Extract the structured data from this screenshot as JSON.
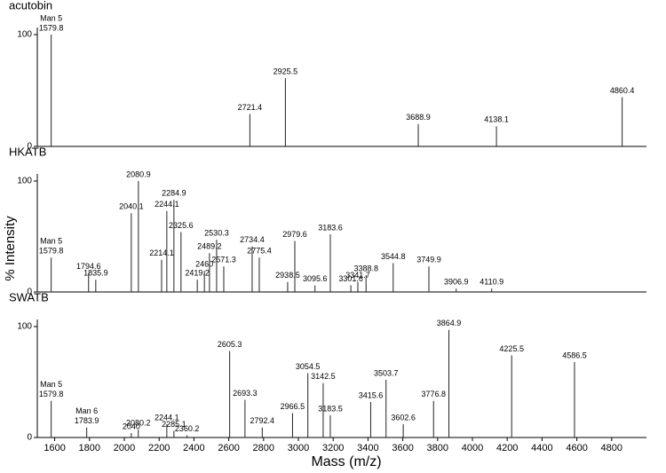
{
  "chart_data": [
    {
      "type": "spectrum",
      "title": "acutobin",
      "ylim": [
        0,
        100
      ],
      "yticks": [
        0,
        100
      ],
      "x": [
        1579.8,
        2721.4,
        2925.5,
        3688.9,
        4138.1,
        4860.4
      ],
      "values": [
        100,
        29,
        61,
        20,
        18,
        44
      ],
      "peak_names": [
        "Man 5",
        null,
        null,
        null,
        null,
        null
      ]
    },
    {
      "type": "spectrum",
      "title": "HKATB",
      "ylabel": "% Intensity",
      "ylim": [
        0,
        100
      ],
      "yticks": [
        0,
        100
      ],
      "x": [
        1579.8,
        1794.6,
        1835.9,
        2040.1,
        2080.9,
        2214.1,
        2244.1,
        2284.9,
        2325.6,
        2419.2,
        2460.0,
        2489.2,
        2530.3,
        2571.3,
        2734.4,
        2775.4,
        2938.5,
        2979.6,
        3095.6,
        3183.6,
        3301.6,
        3341.7,
        3388.8,
        3544.8,
        3749.9,
        3906.9,
        4110.9
      ],
      "values": [
        31,
        17,
        11,
        71,
        100,
        29,
        73,
        83,
        54,
        11,
        19,
        35,
        47,
        23,
        41,
        31,
        9,
        46,
        6,
        52,
        6,
        9,
        15,
        26,
        23,
        3,
        3
      ],
      "peak_names": [
        "Man 5",
        null,
        null,
        null,
        null,
        null,
        null,
        null,
        null,
        null,
        null,
        null,
        null,
        null,
        null,
        null,
        null,
        null,
        null,
        null,
        null,
        null,
        null,
        null,
        null,
        null,
        null
      ]
    },
    {
      "type": "spectrum",
      "title": "SWATB",
      "xlabel": "Mass (m/z)",
      "ylim": [
        0,
        100
      ],
      "yticks": [
        0,
        100
      ],
      "xlim": [
        1500,
        5000
      ],
      "xticks": [
        1600,
        1800,
        2000,
        2200,
        2400,
        2600,
        2800,
        3000,
        3200,
        3400,
        3600,
        3800,
        4000,
        4200,
        4400,
        4600,
        4800
      ],
      "x": [
        1579.8,
        1783.9,
        2040.0,
        2080.2,
        2244.1,
        2285.1,
        2360.2,
        2605.3,
        2693.3,
        2792.4,
        2966.5,
        3054.5,
        3142.5,
        3183.5,
        3415.6,
        3503.7,
        3602.6,
        3776.8,
        3864.9,
        4225.5,
        4586.5
      ],
      "values": [
        33,
        9,
        4,
        7,
        12,
        6,
        2,
        78,
        34,
        9,
        22,
        58,
        49,
        20,
        32,
        52,
        12,
        33,
        97,
        74,
        68
      ],
      "peak_names": [
        "Man 5",
        "Man 6",
        null,
        null,
        null,
        null,
        null,
        null,
        null,
        null,
        null,
        null,
        null,
        null,
        null,
        null,
        null,
        null,
        null,
        null,
        null
      ]
    }
  ]
}
